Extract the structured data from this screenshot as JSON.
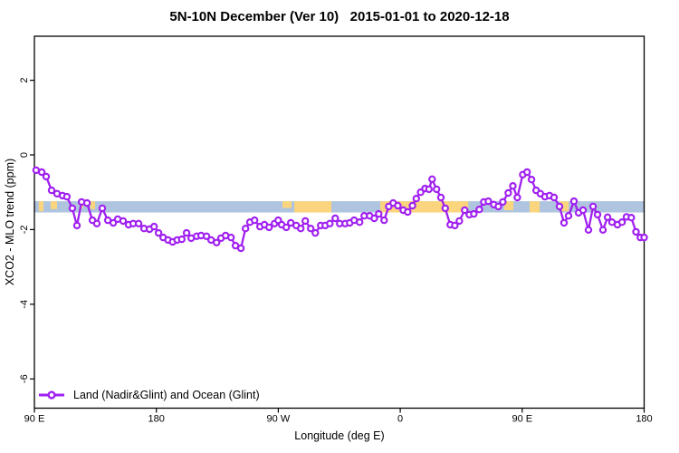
{
  "chart_data": {
    "type": "line",
    "title": "5N-10N December (Ver 10)   2015-01-01 to 2020-12-18",
    "xlabel": "Longitude (deg E)",
    "ylabel": "XCO2 - MLO trend (ppm)",
    "grid": "off",
    "legend": {
      "position": "bottom-left",
      "entries": [
        {
          "label": "Land (Nadir&Glint) and Ocean (Glint)",
          "color": "#A020F0",
          "marker": "open-circle"
        }
      ]
    },
    "x_axis": {
      "label": "Longitude (deg E)",
      "range_continuous_deg_east": [
        90,
        540
      ],
      "ticks": [
        {
          "lon": 90,
          "label": "90 E"
        },
        {
          "lon": 180,
          "label": "180"
        },
        {
          "lon": 270,
          "label": "90 W"
        },
        {
          "lon": 360,
          "label": "0"
        },
        {
          "lon": 450,
          "label": "90 E"
        },
        {
          "lon": 540,
          "label": "180"
        }
      ]
    },
    "y_axis": {
      "label": "XCO2 - MLO trend (ppm)",
      "range": [
        -6.8,
        3.2
      ],
      "ticks": [
        2,
        0,
        -2,
        -4,
        -6
      ]
    },
    "reference_band": {
      "y_from": -1.54,
      "y_to": -1.24,
      "ocean_color": "#AFC4DE",
      "land_color": "#FBD57E",
      "land_segments_lon": [
        [
          93.3,
          96.7,
          0.9
        ],
        [
          102.0,
          106.7,
          0.7
        ],
        [
          123.4,
          126.1,
          0.6
        ],
        [
          131.4,
          134.8,
          0.7
        ],
        [
          273.1,
          279.8,
          0.6
        ],
        [
          281.8,
          309.2,
          1
        ],
        [
          345.3,
          410.2,
          1
        ],
        [
          436.8,
          443.5,
          0.8
        ],
        [
          455.5,
          462.9,
          1
        ],
        [
          477.6,
          484.3,
          0.9
        ]
      ]
    },
    "series": [
      {
        "name": "Land (Nadir&Glint) and Ocean (Glint)",
        "color": "#A020F0",
        "marker": "open-circle",
        "points": [
          [
            91.3,
            -0.41
          ],
          [
            95.4,
            -0.46
          ],
          [
            98.7,
            -0.58
          ],
          [
            102.7,
            -0.95
          ],
          [
            106.7,
            -1.04
          ],
          [
            110.7,
            -1.09
          ],
          [
            114.0,
            -1.12
          ],
          [
            118.0,
            -1.43
          ],
          [
            121.4,
            -1.89
          ],
          [
            124.8,
            -1.26
          ],
          [
            128.8,
            -1.29
          ],
          [
            132.8,
            -1.75
          ],
          [
            136.1,
            -1.84
          ],
          [
            140.1,
            -1.43
          ],
          [
            144.2,
            -1.75
          ],
          [
            148.2,
            -1.82
          ],
          [
            151.5,
            -1.72
          ],
          [
            155.5,
            -1.77
          ],
          [
            159.5,
            -1.87
          ],
          [
            162.9,
            -1.84
          ],
          [
            166.9,
            -1.84
          ],
          [
            170.9,
            -1.97
          ],
          [
            174.9,
            -1.99
          ],
          [
            178.3,
            -1.92
          ],
          [
            181.6,
            -2.09
          ],
          [
            185.0,
            -2.21
          ],
          [
            188.6,
            -2.28
          ],
          [
            192.0,
            -2.33
          ],
          [
            195.4,
            -2.28
          ],
          [
            198.8,
            -2.26
          ],
          [
            202.3,
            -2.09
          ],
          [
            205.7,
            -2.23
          ],
          [
            209.7,
            -2.18
          ],
          [
            213.0,
            -2.16
          ],
          [
            217.0,
            -2.18
          ],
          [
            220.4,
            -2.28
          ],
          [
            224.4,
            -2.35
          ],
          [
            227.7,
            -2.23
          ],
          [
            231.1,
            -2.16
          ],
          [
            235.1,
            -2.21
          ],
          [
            238.4,
            -2.43
          ],
          [
            242.4,
            -2.5
          ],
          [
            245.8,
            -1.97
          ],
          [
            249.1,
            -1.8
          ],
          [
            252.5,
            -1.75
          ],
          [
            256.5,
            -1.92
          ],
          [
            259.8,
            -1.87
          ],
          [
            263.2,
            -1.94
          ],
          [
            267.2,
            -1.84
          ],
          [
            269.9,
            -1.75
          ],
          [
            272.5,
            -1.87
          ],
          [
            275.9,
            -1.94
          ],
          [
            279.2,
            -1.82
          ],
          [
            283.2,
            -1.89
          ],
          [
            286.6,
            -1.97
          ],
          [
            289.9,
            -1.77
          ],
          [
            293.9,
            -1.97
          ],
          [
            297.3,
            -2.09
          ],
          [
            301.3,
            -1.89
          ],
          [
            304.6,
            -1.89
          ],
          [
            308.0,
            -1.84
          ],
          [
            312.0,
            -1.7
          ],
          [
            315.3,
            -1.84
          ],
          [
            319.4,
            -1.84
          ],
          [
            322.7,
            -1.82
          ],
          [
            326.0,
            -1.75
          ],
          [
            330.0,
            -1.8
          ],
          [
            333.4,
            -1.63
          ],
          [
            337.4,
            -1.63
          ],
          [
            340.8,
            -1.7
          ],
          [
            344.1,
            -1.58
          ],
          [
            348.1,
            -1.75
          ],
          [
            351.5,
            -1.38
          ],
          [
            354.8,
            -1.29
          ],
          [
            358.2,
            -1.36
          ],
          [
            362.2,
            -1.48
          ],
          [
            365.5,
            -1.53
          ],
          [
            369.0,
            -1.36
          ],
          [
            371.8,
            -1.17
          ],
          [
            375.0,
            -1.0
          ],
          [
            378.3,
            -0.9
          ],
          [
            381.2,
            -0.92
          ],
          [
            383.5,
            -0.65
          ],
          [
            386.8,
            -0.92
          ],
          [
            390.0,
            -1.14
          ],
          [
            393.2,
            -1.43
          ],
          [
            396.9,
            -1.87
          ],
          [
            400.3,
            -1.89
          ],
          [
            403.6,
            -1.77
          ],
          [
            407.6,
            -1.48
          ],
          [
            411.0,
            -1.6
          ],
          [
            414.3,
            -1.58
          ],
          [
            418.3,
            -1.46
          ],
          [
            421.7,
            -1.26
          ],
          [
            425.0,
            -1.24
          ],
          [
            429.0,
            -1.33
          ],
          [
            432.4,
            -1.38
          ],
          [
            435.7,
            -1.26
          ],
          [
            439.7,
            -1.02
          ],
          [
            443.1,
            -0.83
          ],
          [
            446.4,
            -1.14
          ],
          [
            450.4,
            -0.53
          ],
          [
            453.6,
            -0.46
          ],
          [
            456.9,
            -0.66
          ],
          [
            460.3,
            -0.95
          ],
          [
            463.4,
            -1.04
          ],
          [
            466.8,
            -1.12
          ],
          [
            470.2,
            -1.09
          ],
          [
            473.5,
            -1.14
          ],
          [
            477.5,
            -1.38
          ],
          [
            480.9,
            -1.82
          ],
          [
            484.2,
            -1.63
          ],
          [
            488.2,
            -1.24
          ],
          [
            491.6,
            -1.55
          ],
          [
            494.9,
            -1.48
          ],
          [
            498.9,
            -2.01
          ],
          [
            502.3,
            -1.38
          ],
          [
            505.6,
            -1.6
          ],
          [
            509.6,
            -2.01
          ],
          [
            513.0,
            -1.67
          ],
          [
            516.3,
            -1.8
          ],
          [
            520.3,
            -1.87
          ],
          [
            523.7,
            -1.8
          ],
          [
            527.0,
            -1.66
          ],
          [
            530.5,
            -1.68
          ],
          [
            534.0,
            -2.06
          ],
          [
            537.2,
            -2.21
          ],
          [
            540.0,
            -2.21
          ]
        ]
      }
    ]
  }
}
